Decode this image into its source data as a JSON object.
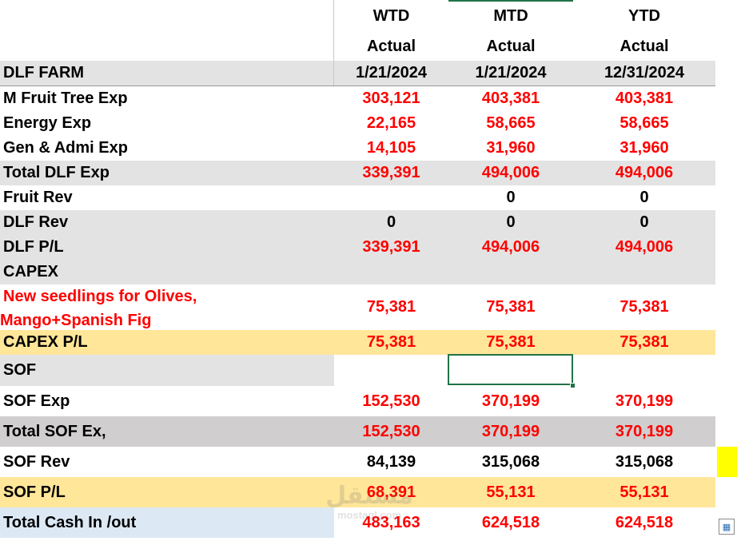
{
  "header": {
    "col1": {
      "period": "WTD",
      "type": "Actual",
      "date": "1/21/2024"
    },
    "col2": {
      "period": "MTD",
      "type": "Actual",
      "date": "1/21/2024"
    },
    "col3": {
      "period": "YTD",
      "type": "Actual",
      "date": "12/31/2024"
    },
    "section_title": "DLF FARM"
  },
  "rows": {
    "m_fruit_tree_exp": {
      "label": "M Fruit Tree Exp",
      "wtd": "303,121",
      "mtd": "403,381",
      "ytd": "403,381"
    },
    "energy_exp": {
      "label": "Energy Exp",
      "wtd": "22,165",
      "mtd": "58,665",
      "ytd": "58,665"
    },
    "gen_admi_exp": {
      "label": "Gen & Admi Exp",
      "wtd": "14,105",
      "mtd": "31,960",
      "ytd": "31,960"
    },
    "total_dlf_exp": {
      "label": "Total DLF Exp",
      "wtd": "339,391",
      "mtd": "494,006",
      "ytd": "494,006"
    },
    "fruit_rev": {
      "label": "Fruit Rev",
      "wtd": "",
      "mtd": "0",
      "ytd": "0"
    },
    "dlf_rev": {
      "label": "DLF Rev",
      "wtd": "0",
      "mtd": "0",
      "ytd": "0"
    },
    "dlf_pl": {
      "label": "DLF P/L",
      "wtd": "339,391",
      "mtd": "494,006",
      "ytd": "494,006"
    },
    "capex": {
      "label": "CAPEX"
    },
    "new_seedlings": {
      "label_line1": "New seedlings for Olives,",
      "label_line2": "Mango+Spanish Fig",
      "wtd": "75,381",
      "mtd": "75,381",
      "ytd": "75,381"
    },
    "capex_pl": {
      "label": "CAPEX P/L",
      "wtd": "75,381",
      "mtd": "75,381",
      "ytd": "75,381"
    },
    "sof": {
      "label": "SOF"
    },
    "sof_exp": {
      "label": "SOF Exp",
      "wtd": "152,530",
      "mtd": "370,199",
      "ytd": "370,199"
    },
    "total_sof_ex": {
      "label": "Total SOF Ex,",
      "wtd": "152,530",
      "mtd": "370,199",
      "ytd": "370,199"
    },
    "sof_rev": {
      "label": "SOF Rev",
      "wtd": "84,139",
      "mtd": "315,068",
      "ytd": "315,068"
    },
    "sof_pl": {
      "label": "SOF P/L",
      "wtd": "68,391",
      "mtd": "55,131",
      "ytd": "55,131"
    },
    "total_cash": {
      "label": "Total Cash In /out",
      "wtd": "483,163",
      "mtd": "624,518",
      "ytd": "624,518"
    }
  },
  "watermark": {
    "arabic": "مستقل",
    "latin": "mostaql.com"
  },
  "colors": {
    "negative": "#ff0000",
    "grey_fill": "#e3e3e3",
    "yellow_fill": "#ffe699",
    "blue_fill": "#dce9f5",
    "selection": "#217346"
  }
}
